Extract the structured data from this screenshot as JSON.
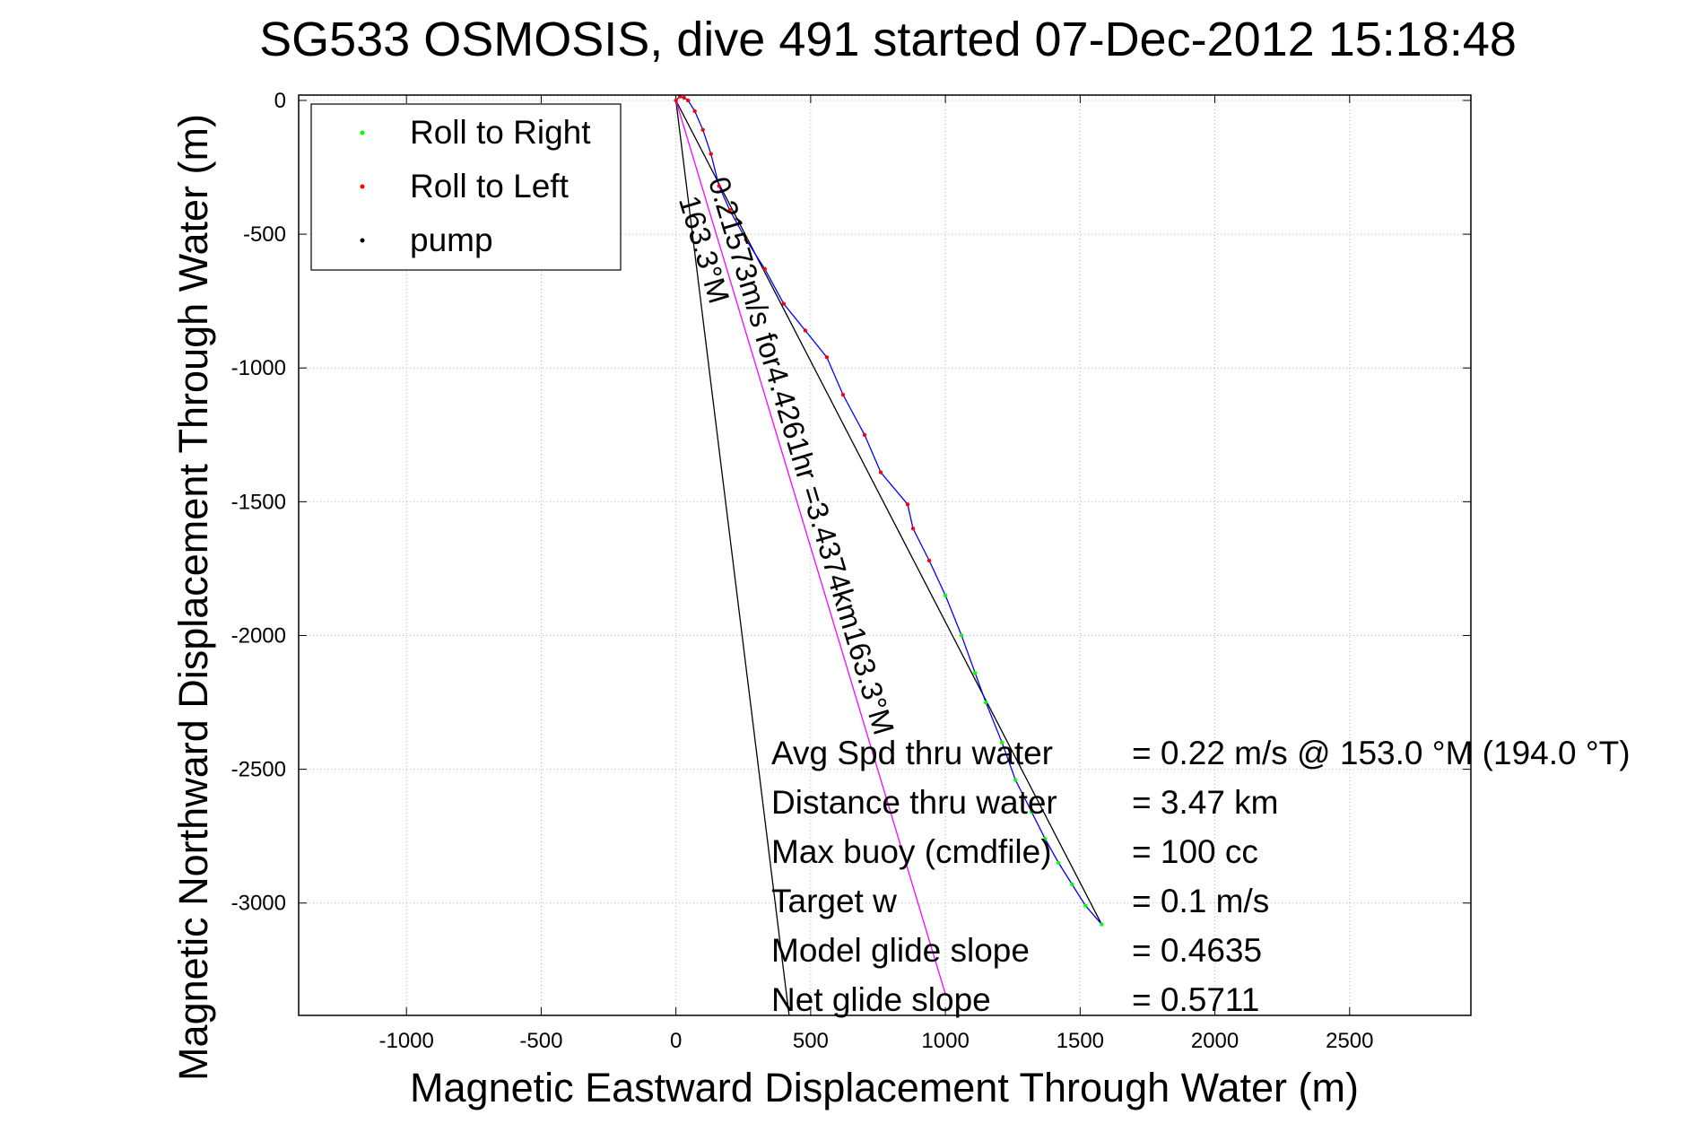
{
  "chart_data": {
    "type": "line",
    "title": "SG533 OSMOSIS, dive 491 started 07-Dec-2012 15:18:48",
    "xlabel": "Magnetic Eastward Displacement Through Water (m)",
    "ylabel": "Magnetic Northward Displacement Through Water (m)",
    "xlim": [
      -1400,
      2950
    ],
    "ylim": [
      -3420,
      20
    ],
    "x_ticks": [
      -1000,
      -500,
      0,
      500,
      1000,
      1500,
      2000,
      2500
    ],
    "y_ticks": [
      0,
      -500,
      -1000,
      -1500,
      -2000,
      -2500,
      -3000
    ],
    "grid": true,
    "legend": {
      "position": "top-left",
      "entries": [
        {
          "label": "Roll to Right",
          "color": "#00ff00"
        },
        {
          "label": "Roll to Left",
          "color": "#ff0000"
        },
        {
          "label": "pump",
          "color": "#000000"
        }
      ]
    },
    "series": [
      {
        "color": "#0000ff",
        "x": [
          0,
          15,
          30,
          45,
          70,
          100,
          130,
          160,
          200,
          260,
          330,
          400,
          480,
          560,
          620,
          700,
          760,
          860,
          880,
          940,
          1000,
          1060,
          1110,
          1150,
          1210,
          1260,
          1320,
          1370,
          1420,
          1470,
          1520,
          1580
        ],
        "y": [
          0,
          15,
          10,
          0,
          -40,
          -110,
          -200,
          -320,
          -410,
          -520,
          -630,
          -760,
          -860,
          -960,
          -1100,
          -1250,
          -1390,
          -1510,
          -1600,
          -1720,
          -1850,
          -2000,
          -2140,
          -2250,
          -2400,
          -2540,
          -2660,
          -2760,
          -2850,
          -2930,
          -3010,
          -3080
        ]
      }
    ],
    "glide_path": {
      "color": "#ff00ff",
      "start": [
        0,
        0
      ],
      "end": [
        1000,
        -3340
      ]
    },
    "lines": [
      {
        "color": "#000000",
        "start": [
          0,
          0
        ],
        "end": [
          1580,
          -3080
        ]
      },
      {
        "color": "#000000",
        "start": [
          0,
          0
        ],
        "end": [
          420,
          -3420
        ]
      }
    ],
    "annotations": [
      {
        "text": "0.21573m/s for4.4261hr =3.4374km163.3°M",
        "x": 120,
        "y": -300,
        "rotation": 73.3
      },
      {
        "text": "163.3°M",
        "x": 10,
        "y": -370,
        "rotation": 73.3
      }
    ],
    "summary": [
      {
        "label": "Avg Spd thru water",
        "value": "=  0.22 m/s @ 153.0 °M (194.0 °T)"
      },
      {
        "label": "Distance thru water",
        "value": "=  3.47 km"
      },
      {
        "label": "Max buoy (cmdfile)",
        "value": "= 100 cc"
      },
      {
        "label": "Target w",
        "value": "= 0.1 m/s"
      },
      {
        "label": "Model glide slope",
        "value": "= 0.4635"
      },
      {
        "label": "Net glide slope",
        "value": "= 0.5711"
      }
    ]
  }
}
